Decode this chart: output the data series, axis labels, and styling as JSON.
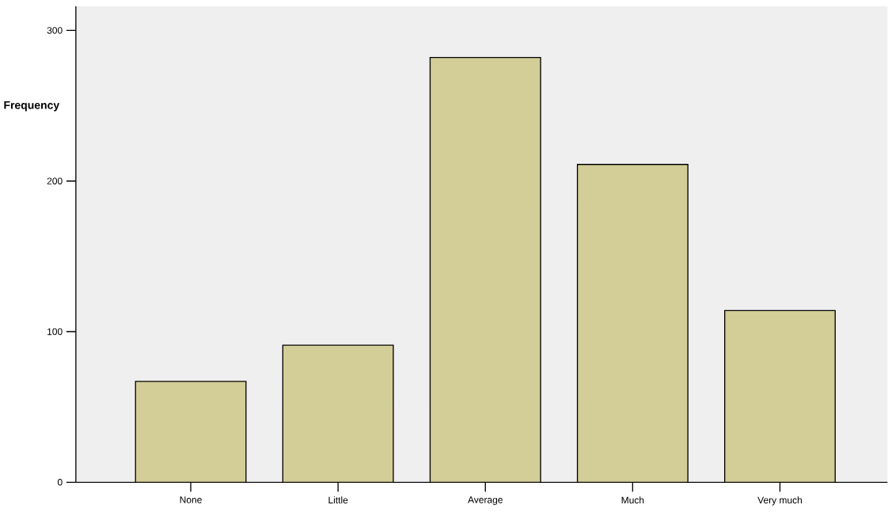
{
  "chart_data": {
    "type": "bar",
    "ylabel": "Frequency",
    "categories": [
      "None",
      "Little",
      "Average",
      "Much",
      "Very much"
    ],
    "values": [
      67,
      91,
      282,
      211,
      114
    ],
    "color": "#d3ce97",
    "ylim": [
      0,
      316
    ],
    "yticks": [
      0,
      100,
      200,
      300
    ],
    "grid": false
  }
}
